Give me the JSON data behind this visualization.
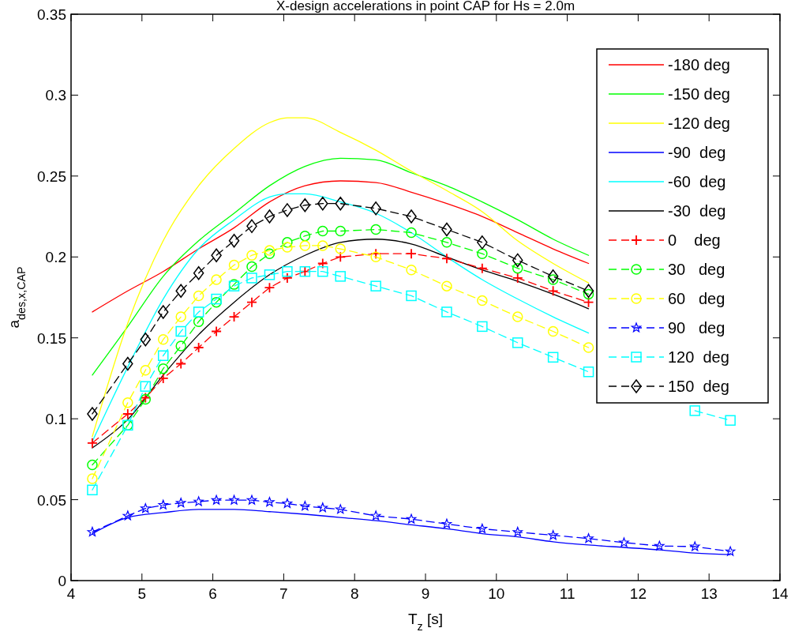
{
  "chart_data": {
    "type": "line",
    "title": "X-design accelerations in point CAP for Hs = 2.0m",
    "xlabel": "T$_{z}$ [s]",
    "ylabel": "a$_{des,x,CAP}$",
    "xlim": [
      4,
      14
    ],
    "xticks": [
      4,
      5,
      6,
      7,
      8,
      9,
      10,
      11,
      12,
      13,
      14
    ],
    "ylim": [
      0,
      0.35
    ],
    "yticks": [
      0,
      0.05,
      0.1,
      0.15,
      0.2,
      0.25,
      0.3,
      0.35
    ],
    "grid": false,
    "legend": "top right",
    "x": [
      4.3,
      4.8,
      5.05,
      5.3,
      5.55,
      5.8,
      6.05,
      6.3,
      6.55,
      6.8,
      7.05,
      7.3,
      7.55,
      7.8,
      8.3,
      8.8,
      9.3,
      9.8,
      10.3,
      10.8,
      11.3,
      11.8,
      12.3,
      12.8,
      13.3
    ],
    "series": [
      {
        "name": "-180 deg",
        "color": "#ff0000",
        "line_style": "solid",
        "marker": "none",
        "x": [
          4.3,
          4.8,
          5.3,
          5.8,
          6.3,
          6.8,
          7.3,
          7.8,
          8.3,
          8.8,
          9.3,
          9.8,
          10.3,
          10.8,
          11.3
        ],
        "values": [
          0.166,
          0.179,
          0.191,
          0.205,
          0.218,
          0.234,
          0.244,
          0.247,
          0.246,
          0.24,
          0.233,
          0.225,
          0.215,
          0.205,
          0.196
        ]
      },
      {
        "name": "-150 deg",
        "color": "#00ff00",
        "line_style": "solid",
        "marker": "none",
        "x": [
          4.3,
          4.8,
          5.3,
          5.8,
          6.3,
          6.8,
          7.3,
          7.8,
          8.3,
          8.8,
          9.3,
          9.8,
          10.3,
          10.8,
          11.3
        ],
        "values": [
          0.127,
          0.157,
          0.188,
          0.21,
          0.227,
          0.244,
          0.256,
          0.261,
          0.26,
          0.252,
          0.244,
          0.234,
          0.223,
          0.211,
          0.201
        ]
      },
      {
        "name": "-120 deg",
        "color": "#ffff00",
        "line_style": "solid",
        "marker": "none",
        "x": [
          4.3,
          4.8,
          5.3,
          5.8,
          6.3,
          6.8,
          7.05,
          7.3,
          7.8,
          8.3,
          8.8,
          9.3,
          9.8,
          10.3,
          10.8,
          11.3
        ],
        "values": [
          0.089,
          0.159,
          0.21,
          0.244,
          0.267,
          0.283,
          0.286,
          0.286,
          0.277,
          0.266,
          0.253,
          0.241,
          0.228,
          0.21,
          0.196,
          0.184
        ]
      },
      {
        "name": "-90  deg",
        "color": "#0000ff",
        "line_style": "solid",
        "marker": "none",
        "x": [
          4.3,
          4.8,
          5.3,
          5.8,
          6.3,
          6.8,
          7.3,
          7.8,
          8.3,
          8.8,
          9.3,
          9.8,
          10.3,
          10.8,
          11.3,
          11.8,
          12.3,
          12.8,
          13.3
        ],
        "values": [
          0.029,
          0.039,
          0.042,
          0.044,
          0.044,
          0.0426,
          0.041,
          0.039,
          0.037,
          0.0345,
          0.032,
          0.029,
          0.027,
          0.024,
          0.022,
          0.0205,
          0.019,
          0.017,
          0.016
        ]
      },
      {
        "name": "-60  deg",
        "color": "#00ffff",
        "line_style": "solid",
        "marker": "none",
        "x": [
          4.3,
          4.8,
          5.3,
          5.8,
          6.3,
          6.8,
          7.05,
          7.3,
          7.8,
          8.3,
          8.8,
          9.3,
          9.8,
          10.3,
          10.8,
          11.3
        ],
        "values": [
          0.086,
          0.132,
          0.174,
          0.205,
          0.223,
          0.237,
          0.239,
          0.239,
          0.234,
          0.227,
          0.215,
          0.2,
          0.186,
          0.174,
          0.163,
          0.153
        ]
      },
      {
        "name": "-30  deg",
        "color": "#000000",
        "line_style": "solid",
        "marker": "none",
        "x": [
          4.3,
          4.8,
          5.3,
          5.8,
          6.3,
          6.8,
          7.3,
          7.8,
          8.3,
          8.8,
          9.3,
          9.8,
          10.3,
          10.8,
          11.3
        ],
        "values": [
          0.082,
          0.0995,
          0.127,
          0.152,
          0.172,
          0.189,
          0.201,
          0.209,
          0.211,
          0.208,
          0.2,
          0.192,
          0.185,
          0.177,
          0.168
        ]
      },
      {
        "name": "0    deg",
        "color": "#ff0000",
        "line_style": "dashed",
        "marker": "cross",
        "values": [
          0.085,
          0.103,
          0.113,
          0.125,
          0.134,
          0.144,
          0.154,
          0.163,
          0.172,
          0.181,
          0.187,
          0.191,
          0.196,
          0.2,
          0.202,
          0.202,
          0.199,
          0.193,
          0.187,
          0.179,
          0.172,
          null,
          null,
          null,
          null
        ]
      },
      {
        "name": "30   deg",
        "color": "#00ff00",
        "line_style": "dashed",
        "marker": "circle",
        "values": [
          0.0715,
          0.096,
          0.112,
          0.131,
          0.145,
          0.16,
          0.172,
          0.183,
          0.194,
          0.202,
          0.209,
          0.213,
          0.216,
          0.216,
          0.217,
          0.215,
          0.209,
          0.202,
          0.193,
          0.186,
          0.177,
          null,
          null,
          null,
          null
        ]
      },
      {
        "name": "60   deg",
        "color": "#ffff00",
        "line_style": "dashed",
        "marker": "circle",
        "values": [
          0.063,
          0.11,
          0.13,
          0.149,
          0.163,
          0.176,
          0.186,
          0.195,
          0.201,
          0.204,
          0.206,
          0.207,
          0.207,
          0.205,
          0.2,
          0.192,
          0.182,
          0.173,
          0.163,
          0.154,
          0.144,
          null,
          null,
          null,
          null
        ]
      },
      {
        "name": "90   deg",
        "color": "#0000ff",
        "line_style": "dashed",
        "marker": "star",
        "values": [
          0.03,
          0.04,
          0.0446,
          0.0467,
          0.048,
          0.0488,
          0.0497,
          0.0497,
          0.0497,
          0.0485,
          0.0476,
          0.046,
          0.045,
          0.044,
          0.04,
          0.038,
          0.035,
          0.032,
          0.03,
          0.028,
          0.026,
          0.0235,
          0.0214,
          0.021,
          0.018
        ]
      },
      {
        "name": "120  deg",
        "color": "#00ffff",
        "line_style": "dashed",
        "marker": "square",
        "values": [
          0.056,
          0.096,
          0.12,
          0.139,
          0.154,
          0.166,
          0.174,
          0.182,
          0.187,
          0.189,
          0.191,
          0.191,
          0.191,
          0.188,
          0.182,
          0.176,
          0.166,
          0.157,
          0.147,
          0.138,
          0.129,
          null,
          null,
          0.105,
          0.099
        ]
      },
      {
        "name": "150  deg",
        "color": "#000000",
        "line_style": "dashed",
        "marker": "diamond",
        "values": [
          0.103,
          0.134,
          0.149,
          0.166,
          0.179,
          0.19,
          0.201,
          0.21,
          0.219,
          0.225,
          0.229,
          0.232,
          0.233,
          0.233,
          0.23,
          0.225,
          0.217,
          0.209,
          0.198,
          0.188,
          0.179,
          null,
          null,
          null,
          null
        ]
      }
    ]
  }
}
